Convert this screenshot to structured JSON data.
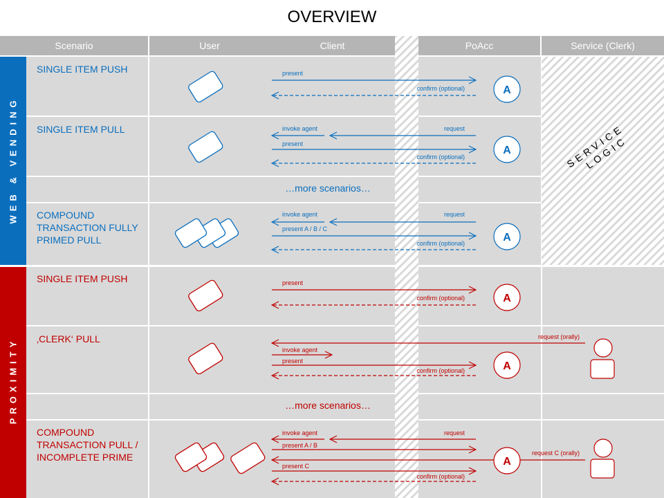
{
  "title": "OVERVIEW",
  "headers": {
    "scenario": "Scenario",
    "user": "User",
    "client": "Client",
    "poacc": "PoAcc",
    "service": "Service (Clerk)"
  },
  "colors": {
    "blue": "#0a6ebd",
    "red": "#c00000",
    "cell": "#d9d9d9",
    "header": "#b5b5b5"
  },
  "groups": [
    {
      "label": "WEB & VENDING",
      "color": "#0a6ebd"
    },
    {
      "label": "PROXIMITY",
      "color": "#c00000"
    }
  ],
  "service_logic": {
    "line1": "SERVICE",
    "line2": "LOGIC"
  },
  "agent_label": "A",
  "web": {
    "rows": [
      {
        "scenario": "SINGLE ITEM PUSH",
        "present": "present",
        "confirm": "confirm (optional)"
      },
      {
        "scenario": "SINGLE ITEM PULL",
        "invoke": "invoke agent",
        "request": "request",
        "present": "present",
        "confirm": "confirm (optional)"
      },
      {
        "more": "…more scenarios…"
      },
      {
        "scenario": "COMPOUND TRANSACTION FULLY PRIMED PULL",
        "invoke": "invoke agent",
        "request": "request",
        "present": "present  A / B / C",
        "confirm": "confirm (optional)"
      }
    ]
  },
  "prox": {
    "rows": [
      {
        "scenario": "SINGLE ITEM PUSH",
        "present": "present",
        "confirm": "confirm (optional)"
      },
      {
        "scenario": "‚CLERK‘ PULL",
        "request": "request (orally)",
        "invoke": "invoke agent",
        "present": "present",
        "confirm": "confirm (optional)"
      },
      {
        "more": "…more scenarios…"
      },
      {
        "scenario": "COMPOUND TRANSACTION PULL / INCOMPLETE PRIME",
        "invoke": "invoke agent",
        "request": "request",
        "present": "present  A / B",
        "request_c": "request  C (orally)",
        "present_c": "present  C",
        "confirm": "confirm (optional)"
      }
    ]
  }
}
